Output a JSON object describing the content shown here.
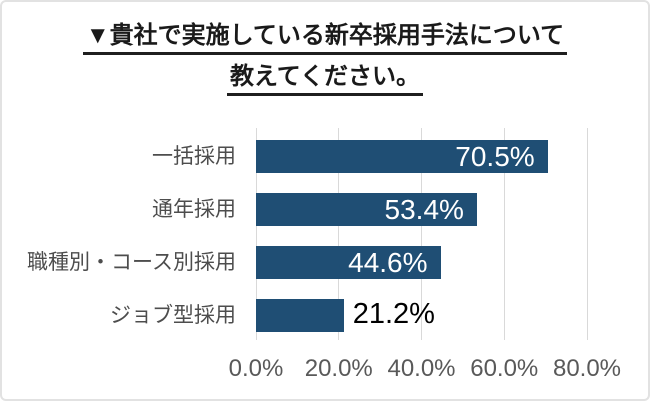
{
  "title": {
    "line1": "▼貴社で実施している新卒採用手法について",
    "line2": "教えてください。"
  },
  "chart_data": {
    "type": "bar",
    "orientation": "horizontal",
    "title": "▼貴社で実施している新卒採用手法について教えてください。",
    "categories": [
      "一括採用",
      "通年採用",
      "職種別・コース別採用",
      "ジョブ型採用"
    ],
    "values": [
      70.5,
      53.4,
      44.6,
      21.2
    ],
    "data_labels": [
      "70.5%",
      "53.4%",
      "44.6%",
      "21.2%"
    ],
    "data_label_placement": [
      "inside",
      "inside",
      "inside",
      "outside"
    ],
    "xlabel": "",
    "ylabel": "",
    "xlim": [
      0,
      80
    ],
    "x_ticks": [
      {
        "value": 0,
        "label": "0.0%"
      },
      {
        "value": 20,
        "label": "20.0%"
      },
      {
        "value": 40,
        "label": "40.0%"
      },
      {
        "value": 60,
        "label": "60.0%"
      },
      {
        "value": 80,
        "label": "80.0%"
      }
    ],
    "grid": true,
    "legend": false,
    "colors": {
      "bar": "#1f4e74",
      "gridline": "#d9d9d9",
      "category_label": "#4d4d4d",
      "tick_label": "#595959",
      "data_label_inside": "#ffffff",
      "data_label_outside": "#000000",
      "title": "#1a1a1a",
      "card_border": "#e2e2e2",
      "background": "#ffffff"
    }
  }
}
